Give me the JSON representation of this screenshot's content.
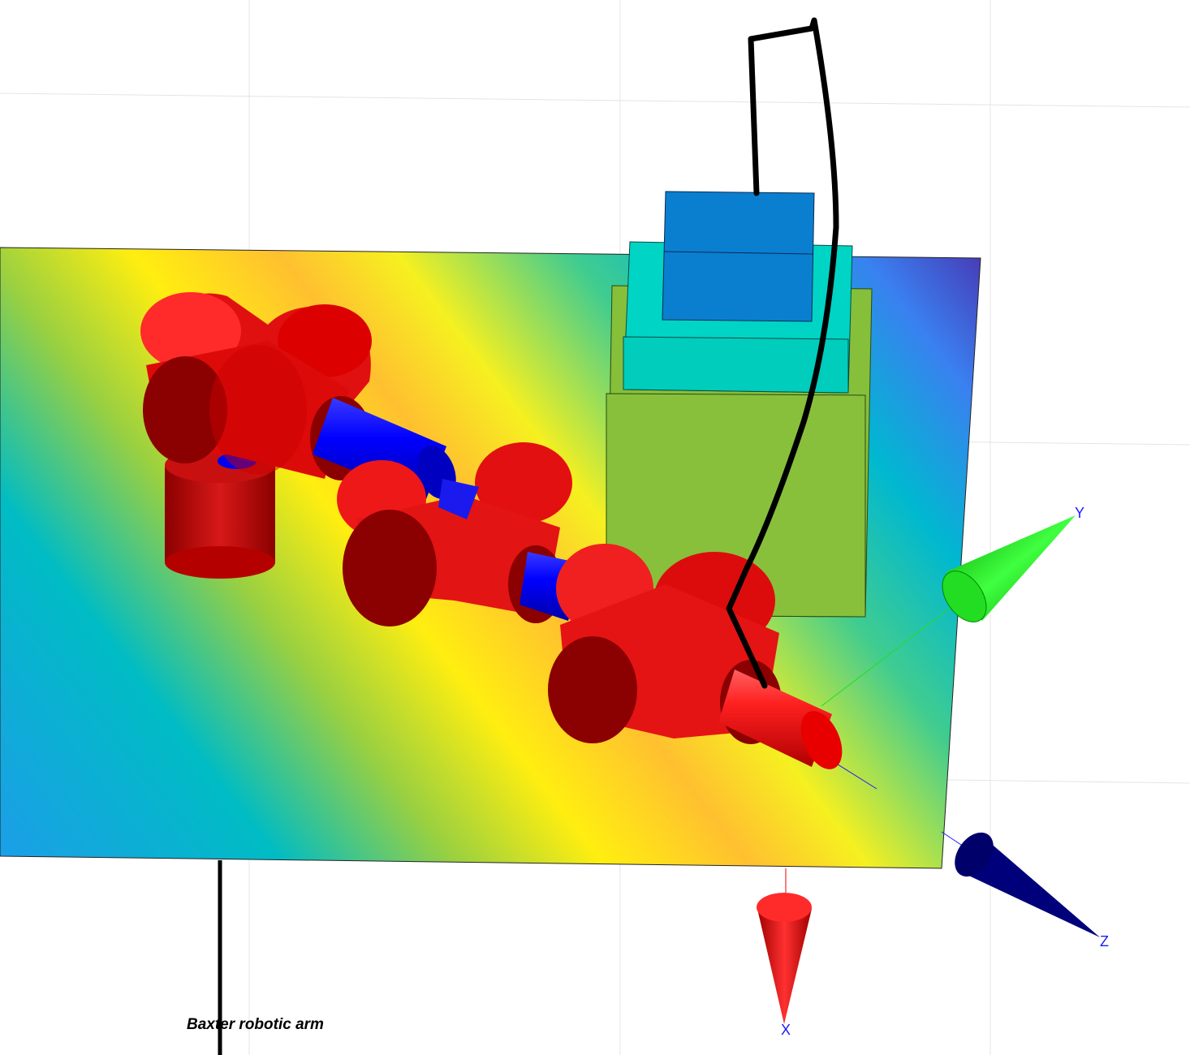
{
  "figure": {
    "caption": "Baxter robotic arm",
    "axes": {
      "x_label": "X",
      "y_label": "Y",
      "z_label": "Z",
      "x_color": "#ee0000",
      "y_color": "#22cc22",
      "z_color": "#00007a"
    },
    "colors": {
      "link_red": "#e00000",
      "link_dark_red": "#8b0000",
      "joint_blue": "#0000ee",
      "box_green": "#86bf3a",
      "box_cyan": "#00d0c0",
      "box_blue": "#0a7fd0",
      "trajectory": "#000000"
    }
  }
}
